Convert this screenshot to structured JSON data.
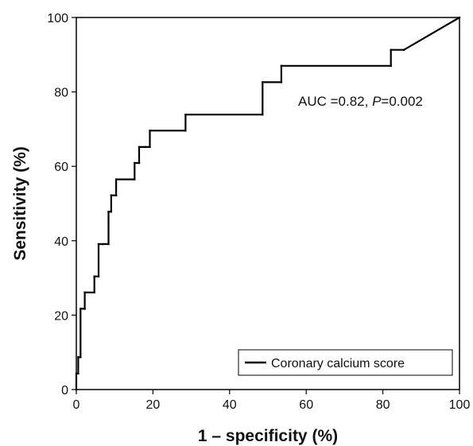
{
  "chart_data": {
    "type": "line",
    "xlabel": "1 – specificity (%)",
    "ylabel": "Sensitivity (%)",
    "xlim": [
      0,
      100
    ],
    "ylim": [
      0,
      100
    ],
    "xticks": [
      "0",
      "20",
      "40",
      "60",
      "80",
      "100"
    ],
    "yticks": [
      "0",
      "20",
      "40",
      "60",
      "80",
      "100"
    ],
    "grid": false,
    "legend_position": "bottom-right",
    "annotation": {
      "prefix": "AUC =0.82, ",
      "p_label": "P",
      "p_value": "=0.002"
    },
    "series": [
      {
        "name": "Coronary calcium score",
        "color": "#000000",
        "x": [
          0,
          0,
          0.5,
          0.5,
          1.1,
          1.1,
          2.2,
          2.2,
          4.7,
          4.7,
          5.8,
          5.8,
          6.9,
          6.9,
          8.4,
          8.4,
          9.1,
          9.1,
          10.4,
          10.4,
          15.2,
          15.2,
          16.4,
          16.4,
          18.0,
          18.0,
          19.2,
          19.2,
          28.5,
          28.5,
          48.6,
          48.6,
          53.5,
          53.5,
          82.1,
          82.1,
          85.5,
          100
        ],
        "y": [
          0,
          4.3,
          4.3,
          8.7,
          8.7,
          21.7,
          21.7,
          26.1,
          26.1,
          30.4,
          30.4,
          39.1,
          39.1,
          39.1,
          39.1,
          47.8,
          47.8,
          52.2,
          52.2,
          56.5,
          56.5,
          60.9,
          60.9,
          65.2,
          65.2,
          65.2,
          65.2,
          69.6,
          69.6,
          73.9,
          73.9,
          82.6,
          82.6,
          87.0,
          87.0,
          91.3,
          91.3,
          100
        ]
      }
    ]
  }
}
